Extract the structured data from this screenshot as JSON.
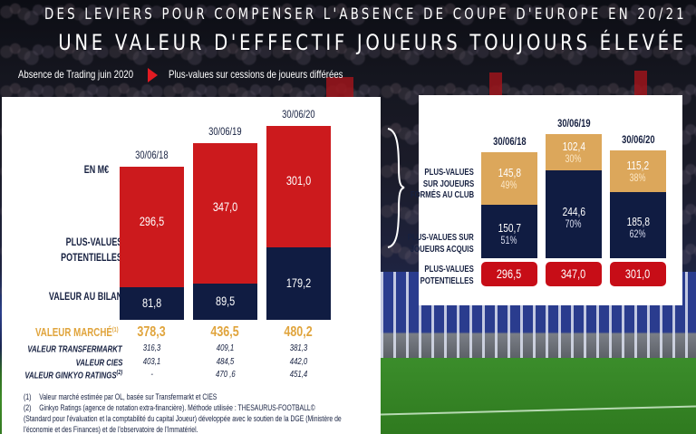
{
  "header": {
    "line1": "DES LEVIERS POUR COMPENSER L'ABSENCE DE COUPE D'EUROPE EN 20/21",
    "line2": "UNE VALEUR D'EFFECTIF JOUEURS TOUJOURS ÉLEVÉE",
    "sub_left": "Absence de Trading juin 2020",
    "sub_right": "Plus-values sur cessions de joueurs différées",
    "arrow_icon": "play-arrow-icon"
  },
  "colors": {
    "red": "#cc1a1d",
    "navy": "#101c42",
    "gold": "#dca75b",
    "market_gold": "#e0a43c",
    "pill_red": "#c70d17"
  },
  "chart_data": [
    {
      "type": "bar",
      "stacked": true,
      "title": "",
      "unit_label": "EN M€",
      "categories": [
        "30/06/18",
        "30/06/19",
        "30/06/20"
      ],
      "series": [
        {
          "name": "VALEUR AU BILAN",
          "values": [
            81.8,
            89.5,
            179.2
          ],
          "labels": [
            "81,8",
            "89,5",
            "179,2"
          ],
          "color": "#101c42"
        },
        {
          "name": "PLUS-VALUES POTENTIELLES",
          "values": [
            296.5,
            347.0,
            301.0
          ],
          "labels": [
            "296,5",
            "347,0",
            "301,0"
          ],
          "color": "#cc1a1d"
        }
      ],
      "row_labels": {
        "unit": "EN M€",
        "plus_values_line1": "PLUS-VALUES",
        "plus_values_line2": "POTENTIELLES",
        "bilan": "VALEUR  AU BILAN"
      },
      "table": {
        "market": {
          "label": "VALEUR MARCHÉ",
          "note": "(1)",
          "values": [
            "378,3",
            "436,5",
            "480,2"
          ]
        },
        "rows": [
          {
            "label": "VALEUR TRANSFERMARKT",
            "note": "",
            "values": [
              "316,3",
              "409,1",
              "381,3"
            ]
          },
          {
            "label": "VALEUR CIES",
            "note": "",
            "values": [
              "403,1",
              "484,5",
              "442,0"
            ]
          },
          {
            "label": "VALEUR GINKYO RATINGS",
            "note": "(2)",
            "values": [
              "-",
              "470 ,6",
              "451,4"
            ]
          }
        ]
      },
      "ylim": [
        0,
        480.2
      ],
      "grid": false,
      "legend": "none"
    },
    {
      "type": "bar",
      "stacked": true,
      "title": "",
      "categories": [
        "30/06/18",
        "30/06/19",
        "30/06/20"
      ],
      "series": [
        {
          "name": "PLUS-VALUES SUR JOUEURS ACQUIS",
          "values": [
            150.7,
            244.6,
            185.8
          ],
          "labels": [
            "150,7",
            "244,6",
            "185,8"
          ],
          "percent": [
            "51%",
            "70%",
            "62%"
          ],
          "color": "#101c42"
        },
        {
          "name": "PLUS-VALUES SUR JOUEURS FORMÉS AU CLUB",
          "values": [
            145.8,
            102.4,
            115.2
          ],
          "labels": [
            "145,8",
            "102,4",
            "115,2"
          ],
          "percent": [
            "49%",
            "30%",
            "38%"
          ],
          "color": "#dca75b"
        }
      ],
      "totals": {
        "name": "PLUS-VALUES POTENTIELLES",
        "values": [
          296.5,
          347.0,
          301.0
        ],
        "labels": [
          "296,5",
          "347,0",
          "301,0"
        ]
      },
      "row_labels": {
        "formes": [
          "PLUS-VALUES",
          "SUR JOUEURS",
          "FORMÉS AU CLUB"
        ],
        "acquis": [
          "PLUS-VALUES SUR",
          "JOUEURS ACQUIS"
        ],
        "totals": [
          "PLUS-VALUES",
          "POTENTIELLES"
        ]
      },
      "ylim": [
        0,
        347.0
      ],
      "grid": false,
      "legend": "none"
    }
  ],
  "footnotes": [
    {
      "num": "(1)",
      "text": "Valeur marché estimée par OL, basée sur Transfermarkt et CIES"
    },
    {
      "num": "(2)",
      "text": "Ginkyo Ratings (agence de notation extra-financière). Méthode utilisée : THESAURUS-FOOTBALL©"
    },
    {
      "num": "",
      "text": "(Standard pour l'évaluation et la comptabilité du capital Joueur) développée avec le soutien de la DGE (Ministère de"
    },
    {
      "num": "",
      "text": "l'économie et des Finances) et de l'observatoire de l'Immatériel."
    }
  ]
}
